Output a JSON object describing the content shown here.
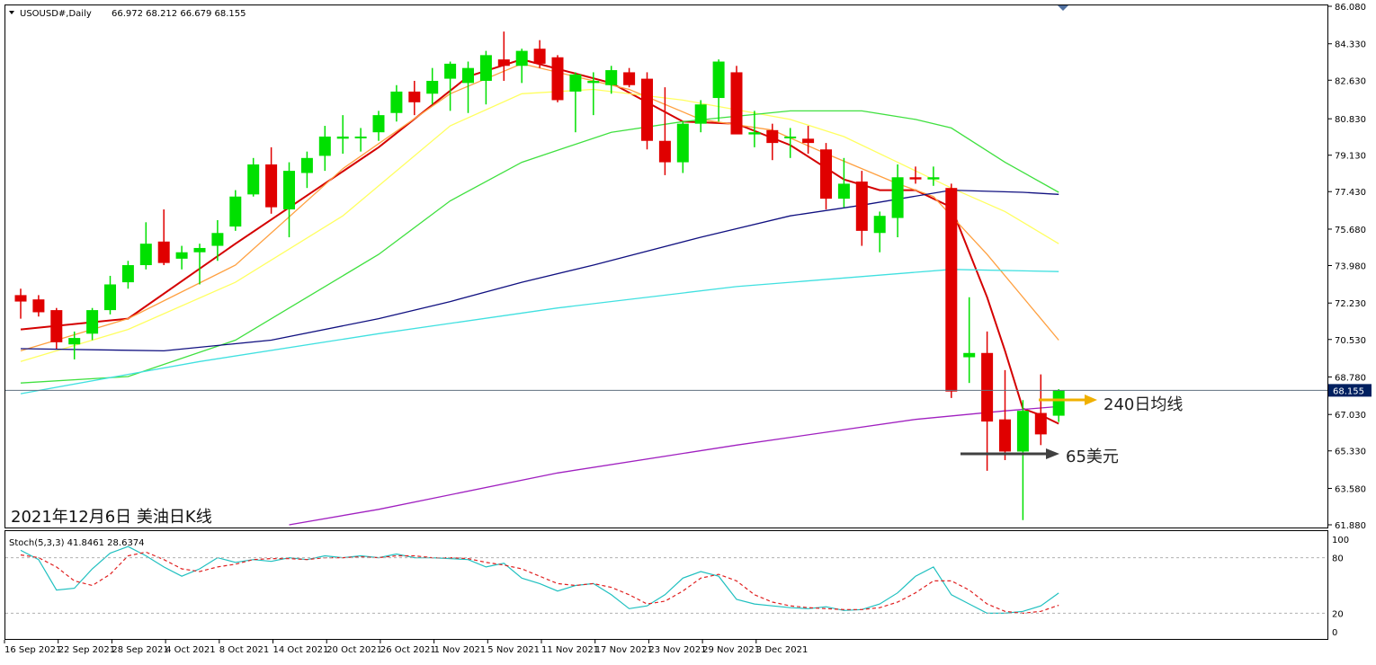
{
  "header": {
    "symbol": "USOUSD#,Daily",
    "ohlc": "66.972 68.212 66.679 68.155",
    "stoch_label": "Stoch(5,3,3) 41.8461 28.6374"
  },
  "caption": "2021年12月6日 美油日K线",
  "annotations": {
    "ma240": "240日均线",
    "level65": "65美元"
  },
  "colors": {
    "bull": "#00e000",
    "bear": "#e00000",
    "ma_red": "#d40000",
    "ma_orange": "#ffa040",
    "ma_yellow": "#ffff60",
    "ma_green": "#40e040",
    "ma_navy": "#101080",
    "ma_cyan": "#40e0e0",
    "ma_purple": "#a020c0",
    "stoch_main": "#20c0c0",
    "stoch_signal": "#e02020",
    "arrow_gold": "#f0b000",
    "arrow_dark": "#404040"
  },
  "chart_data": {
    "type": "candlestick",
    "title": "",
    "y_axis_ticks": [
      "86.080",
      "84.330",
      "82.630",
      "80.830",
      "79.130",
      "77.430",
      "75.680",
      "73.980",
      "72.230",
      "70.530",
      "68.780",
      "67.030",
      "65.330",
      "63.580",
      "61.880"
    ],
    "ylim": [
      61.88,
      86.08
    ],
    "current_price": "68.155",
    "x_axis_ticks": [
      "16 Sep 2021",
      "22 Sep 2021",
      "28 Sep 2021",
      "4 Oct 2021",
      "8 Oct 2021",
      "14 Oct 2021",
      "20 Oct 2021",
      "26 Oct 2021",
      "1 Nov 2021",
      "5 Nov 2021",
      "11 Nov 2021",
      "17 Nov 2021",
      "23 Nov 2021",
      "29 Nov 2021",
      "3 Dec 2021"
    ],
    "candles": [
      {
        "o": 72.6,
        "h": 72.9,
        "l": 71.5,
        "c": 72.3
      },
      {
        "o": 72.4,
        "h": 72.6,
        "l": 71.6,
        "c": 71.8
      },
      {
        "o": 71.9,
        "h": 72.0,
        "l": 70.1,
        "c": 70.4
      },
      {
        "o": 70.3,
        "h": 70.9,
        "l": 69.6,
        "c": 70.6
      },
      {
        "o": 70.8,
        "h": 72.0,
        "l": 70.5,
        "c": 71.9
      },
      {
        "o": 71.9,
        "h": 73.5,
        "l": 71.7,
        "c": 73.1
      },
      {
        "o": 73.2,
        "h": 74.2,
        "l": 72.9,
        "c": 74.0
      },
      {
        "o": 74.0,
        "h": 76.0,
        "l": 73.8,
        "c": 75.0
      },
      {
        "o": 75.1,
        "h": 76.6,
        "l": 74.0,
        "c": 74.1
      },
      {
        "o": 74.3,
        "h": 74.9,
        "l": 73.8,
        "c": 74.6
      },
      {
        "o": 74.6,
        "h": 75.0,
        "l": 73.1,
        "c": 74.8
      },
      {
        "o": 74.9,
        "h": 76.1,
        "l": 74.2,
        "c": 75.5
      },
      {
        "o": 75.8,
        "h": 77.5,
        "l": 75.6,
        "c": 77.2
      },
      {
        "o": 77.3,
        "h": 79.0,
        "l": 77.2,
        "c": 78.7
      },
      {
        "o": 78.7,
        "h": 79.5,
        "l": 76.4,
        "c": 76.7
      },
      {
        "o": 76.6,
        "h": 78.8,
        "l": 75.3,
        "c": 78.4
      },
      {
        "o": 78.3,
        "h": 79.3,
        "l": 77.6,
        "c": 79.0
      },
      {
        "o": 79.1,
        "h": 80.5,
        "l": 78.4,
        "c": 80.0
      },
      {
        "o": 79.9,
        "h": 81.0,
        "l": 79.2,
        "c": 80.0
      },
      {
        "o": 80.0,
        "h": 80.4,
        "l": 79.3,
        "c": 80.0
      },
      {
        "o": 80.2,
        "h": 81.2,
        "l": 79.8,
        "c": 81.0
      },
      {
        "o": 81.1,
        "h": 82.4,
        "l": 80.7,
        "c": 82.1
      },
      {
        "o": 82.1,
        "h": 82.6,
        "l": 81.0,
        "c": 81.6
      },
      {
        "o": 82.0,
        "h": 83.2,
        "l": 81.5,
        "c": 82.6
      },
      {
        "o": 82.7,
        "h": 83.5,
        "l": 81.2,
        "c": 83.4
      },
      {
        "o": 82.5,
        "h": 83.5,
        "l": 81.1,
        "c": 83.2
      },
      {
        "o": 82.6,
        "h": 84.0,
        "l": 81.5,
        "c": 83.8
      },
      {
        "o": 83.6,
        "h": 84.9,
        "l": 82.6,
        "c": 83.3
      },
      {
        "o": 83.3,
        "h": 84.1,
        "l": 82.5,
        "c": 84.0
      },
      {
        "o": 84.1,
        "h": 84.5,
        "l": 83.2,
        "c": 83.4
      },
      {
        "o": 83.7,
        "h": 83.8,
        "l": 81.6,
        "c": 81.7
      },
      {
        "o": 82.1,
        "h": 83.0,
        "l": 80.2,
        "c": 82.9
      },
      {
        "o": 82.5,
        "h": 83.0,
        "l": 81.0,
        "c": 82.6
      },
      {
        "o": 82.4,
        "h": 83.3,
        "l": 82.0,
        "c": 83.1
      },
      {
        "o": 83.0,
        "h": 83.2,
        "l": 82.3,
        "c": 82.4
      },
      {
        "o": 82.7,
        "h": 83.0,
        "l": 79.4,
        "c": 79.8
      },
      {
        "o": 79.8,
        "h": 82.3,
        "l": 78.2,
        "c": 78.8
      },
      {
        "o": 78.8,
        "h": 80.7,
        "l": 78.3,
        "c": 80.6
      },
      {
        "o": 80.6,
        "h": 81.7,
        "l": 80.2,
        "c": 81.5
      },
      {
        "o": 81.8,
        "h": 83.6,
        "l": 80.7,
        "c": 83.5
      },
      {
        "o": 83.0,
        "h": 83.3,
        "l": 80.2,
        "c": 80.1
      },
      {
        "o": 80.1,
        "h": 81.2,
        "l": 79.5,
        "c": 80.2
      },
      {
        "o": 80.3,
        "h": 80.6,
        "l": 78.9,
        "c": 79.7
      },
      {
        "o": 80.0,
        "h": 80.4,
        "l": 79.0,
        "c": 80.0
      },
      {
        "o": 79.9,
        "h": 80.5,
        "l": 79.2,
        "c": 79.7
      },
      {
        "o": 79.4,
        "h": 79.7,
        "l": 76.6,
        "c": 77.1
      },
      {
        "o": 77.1,
        "h": 79.0,
        "l": 76.7,
        "c": 77.8
      },
      {
        "o": 77.9,
        "h": 78.4,
        "l": 74.9,
        "c": 75.6
      },
      {
        "o": 75.5,
        "h": 76.5,
        "l": 74.6,
        "c": 76.3
      },
      {
        "o": 76.2,
        "h": 78.7,
        "l": 75.3,
        "c": 78.1
      },
      {
        "o": 78.1,
        "h": 78.6,
        "l": 77.8,
        "c": 78.0
      },
      {
        "o": 78.0,
        "h": 78.6,
        "l": 77.7,
        "c": 78.1
      },
      {
        "o": 77.6,
        "h": 77.8,
        "l": 67.8,
        "c": 68.1
      },
      {
        "o": 69.7,
        "h": 72.5,
        "l": 68.5,
        "c": 69.9
      },
      {
        "o": 69.9,
        "h": 70.9,
        "l": 64.4,
        "c": 66.7
      },
      {
        "o": 66.8,
        "h": 69.1,
        "l": 64.9,
        "c": 65.3
      },
      {
        "o": 65.3,
        "h": 67.7,
        "l": 62.1,
        "c": 67.2
      },
      {
        "o": 67.1,
        "h": 68.9,
        "l": 65.6,
        "c": 66.1
      },
      {
        "o": 66.972,
        "h": 68.212,
        "l": 66.679,
        "c": 68.155
      }
    ],
    "moving_averages": [
      {
        "color": "#d40000",
        "points": [
          [
            0,
            71.0
          ],
          [
            6,
            71.5
          ],
          [
            12,
            75.0
          ],
          [
            20,
            79.5
          ],
          [
            25,
            82.8
          ],
          [
            28,
            83.6
          ],
          [
            33,
            82.5
          ],
          [
            37,
            80.7
          ],
          [
            40,
            80.6
          ],
          [
            43,
            79.6
          ],
          [
            46,
            78.0
          ],
          [
            48,
            77.5
          ],
          [
            50,
            77.5
          ],
          [
            52,
            76.7
          ],
          [
            54,
            72.5
          ],
          [
            55,
            70.0
          ],
          [
            56,
            67.3
          ],
          [
            57,
            67.0
          ],
          [
            58,
            66.6
          ]
        ]
      },
      {
        "color": "#ffa040",
        "points": [
          [
            0,
            70.0
          ],
          [
            6,
            71.5
          ],
          [
            12,
            74.0
          ],
          [
            18,
            78.5
          ],
          [
            24,
            82.0
          ],
          [
            28,
            83.4
          ],
          [
            34,
            82.2
          ],
          [
            38,
            80.8
          ],
          [
            42,
            80.3
          ],
          [
            45,
            79.2
          ],
          [
            49,
            77.8
          ],
          [
            51,
            77.2
          ],
          [
            54,
            74.5
          ],
          [
            57,
            71.5
          ],
          [
            58,
            70.5
          ]
        ]
      },
      {
        "color": "#ffff60",
        "points": [
          [
            0,
            69.5
          ],
          [
            6,
            71.0
          ],
          [
            12,
            73.2
          ],
          [
            18,
            76.3
          ],
          [
            24,
            80.5
          ],
          [
            28,
            82.0
          ],
          [
            32,
            82.2
          ],
          [
            37,
            81.7
          ],
          [
            43,
            80.8
          ],
          [
            46,
            80.0
          ],
          [
            49,
            78.8
          ],
          [
            52,
            77.6
          ],
          [
            55,
            76.5
          ],
          [
            58,
            75.0
          ]
        ]
      },
      {
        "color": "#40e040",
        "points": [
          [
            0,
            68.5
          ],
          [
            6,
            68.8
          ],
          [
            12,
            70.5
          ],
          [
            16,
            72.5
          ],
          [
            20,
            74.5
          ],
          [
            24,
            77.0
          ],
          [
            28,
            78.8
          ],
          [
            33,
            80.2
          ],
          [
            37,
            80.7
          ],
          [
            43,
            81.2
          ],
          [
            47,
            81.2
          ],
          [
            50,
            80.8
          ],
          [
            52,
            80.4
          ],
          [
            55,
            78.8
          ],
          [
            58,
            77.4
          ]
        ]
      },
      {
        "color": "#101080",
        "points": [
          [
            0,
            70.1
          ],
          [
            8,
            70.0
          ],
          [
            14,
            70.5
          ],
          [
            20,
            71.5
          ],
          [
            24,
            72.3
          ],
          [
            28,
            73.2
          ],
          [
            32,
            74.0
          ],
          [
            38,
            75.3
          ],
          [
            43,
            76.3
          ],
          [
            47,
            76.8
          ],
          [
            52,
            77.5
          ],
          [
            56,
            77.4
          ],
          [
            58,
            77.3
          ]
        ]
      },
      {
        "color": "#40e0e0",
        "points": [
          [
            0,
            68.0
          ],
          [
            10,
            69.5
          ],
          [
            20,
            70.8
          ],
          [
            30,
            72.0
          ],
          [
            40,
            73.0
          ],
          [
            52,
            73.8
          ],
          [
            58,
            73.7
          ]
        ]
      },
      {
        "color": "#a020c0",
        "points": [
          [
            15,
            61.88
          ],
          [
            20,
            62.6
          ],
          [
            30,
            64.3
          ],
          [
            40,
            65.6
          ],
          [
            50,
            66.8
          ],
          [
            55,
            67.2
          ],
          [
            58,
            67.4
          ]
        ]
      }
    ],
    "stochastic": {
      "label": "Stoch(5,3,3)",
      "levels": [
        20,
        80
      ],
      "axis_ticks": [
        "100",
        "80",
        "20",
        "0"
      ],
      "main": [
        88,
        78,
        45,
        47,
        68,
        85,
        92,
        82,
        70,
        60,
        68,
        80,
        75,
        78,
        76,
        80,
        78,
        82,
        80,
        82,
        80,
        84,
        80,
        80,
        79,
        78,
        70,
        74,
        58,
        52,
        44,
        50,
        52,
        40,
        25,
        28,
        40,
        58,
        65,
        60,
        35,
        30,
        28,
        26,
        25,
        27,
        23,
        24,
        30,
        42,
        60,
        70,
        40,
        30,
        20,
        20,
        22,
        28,
        41.8461
      ],
      "signal": [
        83,
        80,
        70,
        55,
        50,
        62,
        82,
        86,
        78,
        68,
        65,
        70,
        73,
        78,
        79,
        79,
        78,
        80,
        80,
        81,
        80,
        82,
        82,
        80,
        80,
        79,
        75,
        72,
        68,
        60,
        52,
        50,
        52,
        48,
        40,
        30,
        33,
        44,
        58,
        62,
        55,
        40,
        32,
        28,
        26,
        25,
        24,
        24,
        26,
        32,
        42,
        55,
        55,
        45,
        30,
        22,
        20,
        22,
        28.6374
      ]
    }
  }
}
